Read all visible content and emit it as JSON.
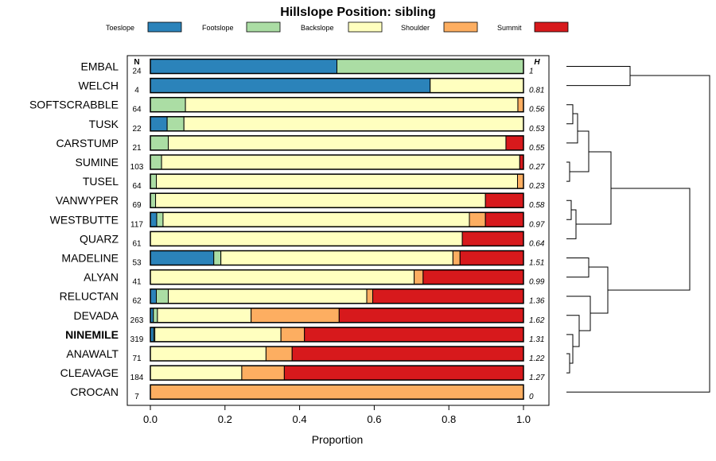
{
  "chart_data": {
    "type": "bar",
    "orientation": "horizontal",
    "stacked": true,
    "title": "Hillslope Position: sibling",
    "xlabel": "Proportion",
    "ylabel": "",
    "xlim": [
      0,
      1
    ],
    "xticks": [
      "0.0",
      "0.2",
      "0.4",
      "0.6",
      "0.8",
      "1.0"
    ],
    "legend_position": "top",
    "grid": false,
    "n_header": "N",
    "h_header": "H",
    "highlighted": "NINEMILE",
    "series": [
      {
        "name": "Toeslope",
        "color": "#2b83ba"
      },
      {
        "name": "Footslope",
        "color": "#abdda4"
      },
      {
        "name": "Backslope",
        "color": "#ffffbf"
      },
      {
        "name": "Shoulder",
        "color": "#fdae61"
      },
      {
        "name": "Summit",
        "color": "#d7191c"
      }
    ],
    "categories": [
      "EMBAL",
      "WELCH",
      "SOFTSCRABBLE",
      "TUSK",
      "CARSTUMP",
      "SUMINE",
      "TUSEL",
      "VANWYPER",
      "WESTBUTTE",
      "QUARZ",
      "MADELINE",
      "ALYAN",
      "RELUCTAN",
      "DEVADA",
      "NINEMILE",
      "ANAWALT",
      "CLEAVAGE",
      "CROCAN"
    ],
    "n": [
      "24",
      "4",
      "64",
      "22",
      "21",
      "103",
      "64",
      "69",
      "117",
      "61",
      "53",
      "41",
      "62",
      "263",
      "319",
      "71",
      "184",
      "7"
    ],
    "h": [
      "1",
      "0.81",
      "0.56",
      "0.53",
      "0.55",
      "0.27",
      "0.23",
      "0.58",
      "0.97",
      "0.64",
      "1.51",
      "0.99",
      "1.36",
      "1.62",
      "1.31",
      "1.22",
      "1.27",
      "0"
    ],
    "values": [
      [
        0.5,
        0.5,
        0.0,
        0.0,
        0.0
      ],
      [
        0.75,
        0.0,
        0.25,
        0.0,
        0.0
      ],
      [
        0.0,
        0.094,
        0.891,
        0.015,
        0.0
      ],
      [
        0.045,
        0.045,
        0.91,
        0.0,
        0.0
      ],
      [
        0.0,
        0.048,
        0.905,
        0.0,
        0.047
      ],
      [
        0.0,
        0.03,
        0.96,
        0.0,
        0.01
      ],
      [
        0.0,
        0.016,
        0.968,
        0.016,
        0.0
      ],
      [
        0.0,
        0.014,
        0.884,
        0.0,
        0.102
      ],
      [
        0.017,
        0.017,
        0.821,
        0.043,
        0.102
      ],
      [
        0.0,
        0.0,
        0.836,
        0.0,
        0.164
      ],
      [
        0.17,
        0.019,
        0.622,
        0.019,
        0.17
      ],
      [
        0.0,
        0.0,
        0.707,
        0.024,
        0.269
      ],
      [
        0.016,
        0.032,
        0.532,
        0.016,
        0.404
      ],
      [
        0.008,
        0.011,
        0.251,
        0.236,
        0.494
      ],
      [
        0.009,
        0.003,
        0.338,
        0.063,
        0.587
      ],
      [
        0.0,
        0.0,
        0.31,
        0.07,
        0.62
      ],
      [
        0.0,
        0.0,
        0.245,
        0.114,
        0.641
      ],
      [
        0.0,
        0.0,
        0.0,
        1.0,
        0.0
      ]
    ]
  }
}
